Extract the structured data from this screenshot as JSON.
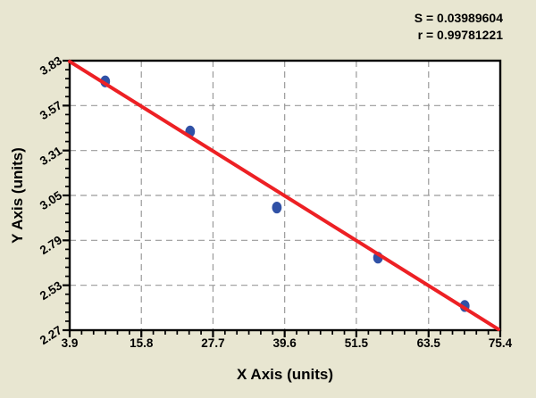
{
  "stats": {
    "s_label": "S = 0.03989604",
    "r_label": "r = 0.99781221"
  },
  "axes": {
    "x_title": "X Axis (units)",
    "y_title": "Y Axis (units)"
  },
  "chart_data": {
    "type": "scatter",
    "title": "",
    "xlabel": "X Axis (units)",
    "ylabel": "Y Axis (units)",
    "xlim": [
      3.9,
      75.4
    ],
    "ylim": [
      2.27,
      3.83
    ],
    "x_ticks": [
      3.9,
      15.8,
      27.7,
      39.6,
      51.5,
      63.5,
      75.4
    ],
    "y_ticks": [
      2.27,
      2.53,
      2.79,
      3.05,
      3.31,
      3.57,
      3.83
    ],
    "x_minor_per_interval": 5,
    "y_minor_per_interval": 4,
    "grid": "dashed",
    "legend": "none",
    "points": [
      [
        9.8,
        3.71
      ],
      [
        23.9,
        3.42
      ],
      [
        38.3,
        2.98
      ],
      [
        55.1,
        2.69
      ],
      [
        69.5,
        2.41
      ]
    ],
    "regression_line": {
      "x1": 3.9,
      "y1": 3.825,
      "x2": 75.1,
      "y2": 2.275
    },
    "stats": {
      "S": 0.03989604,
      "r": 0.99781221
    },
    "colors": {
      "background": "#e8e6d1",
      "plot_bg": "#ffffff",
      "point": "#3051a6",
      "line": "#ed2024",
      "grid": "#9a9a9a",
      "axis": "#000000",
      "text": "#000000"
    }
  }
}
